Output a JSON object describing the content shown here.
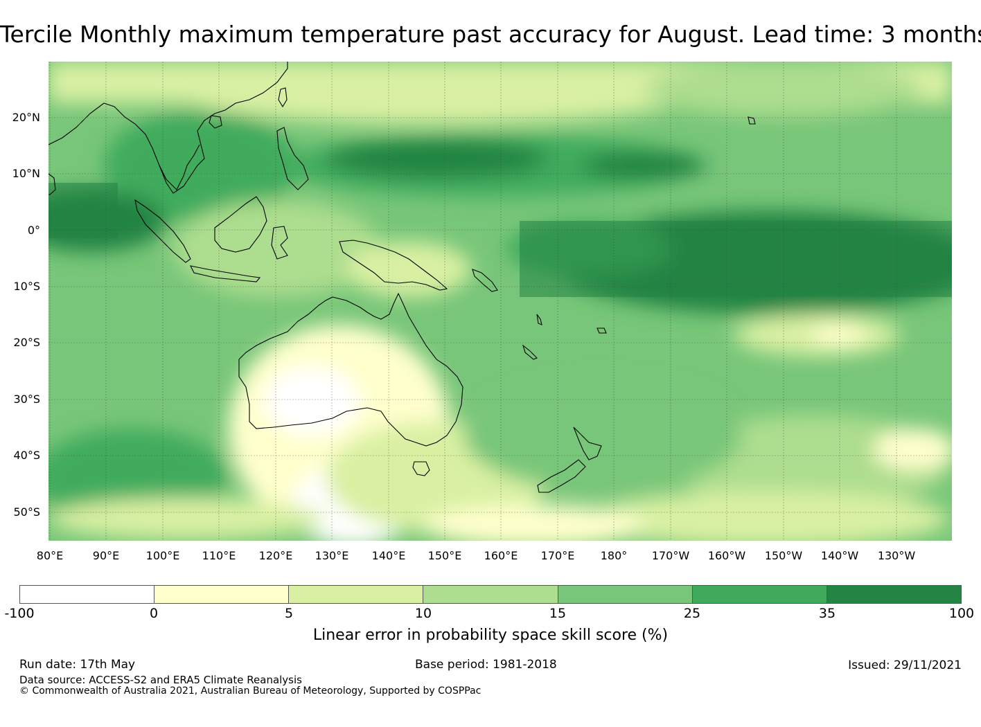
{
  "title": "Tercile Monthly maximum temperature past accuracy for August. Lead time: 3 months",
  "map": {
    "region": "Western Pacific, Maritime Continent, Australia and New Zealand",
    "projection": "lat-lon, 80°E to 120°W, 30°N to 55°S",
    "lat_labels": [
      "20°N",
      "10°N",
      "0°",
      "10°S",
      "20°S",
      "30°S",
      "40°S",
      "50°S"
    ],
    "lon_labels": [
      "80°E",
      "90°E",
      "100°E",
      "110°E",
      "120°E",
      "130°E",
      "140°E",
      "150°E",
      "160°E",
      "170°E",
      "180°",
      "170°W",
      "160°W",
      "150°W",
      "140°W",
      "130°W"
    ],
    "gridlines": true,
    "coastlines": true
  },
  "colorbar": {
    "ticks": [
      "-100",
      "0",
      "5",
      "10",
      "15",
      "25",
      "35",
      "100"
    ],
    "colors": [
      "#ffffff",
      "#ffffcc",
      "#d9f0a3",
      "#addd8e",
      "#78c679",
      "#41ab5d",
      "#238443"
    ],
    "label": "Linear error in probability space skill score (%)"
  },
  "footer": {
    "run_date": "Run date: 17th May",
    "base_period": "Base period: 1981-2018",
    "issued": "Issued: 29/11/2021",
    "data_source": "Data source: ACCESS-S2 and ERA5 Climate Reanalysis",
    "copyright": "© Commonwealth of Australia 2021, Australian Bureau of Meteorology, Supported by COSPPac"
  }
}
